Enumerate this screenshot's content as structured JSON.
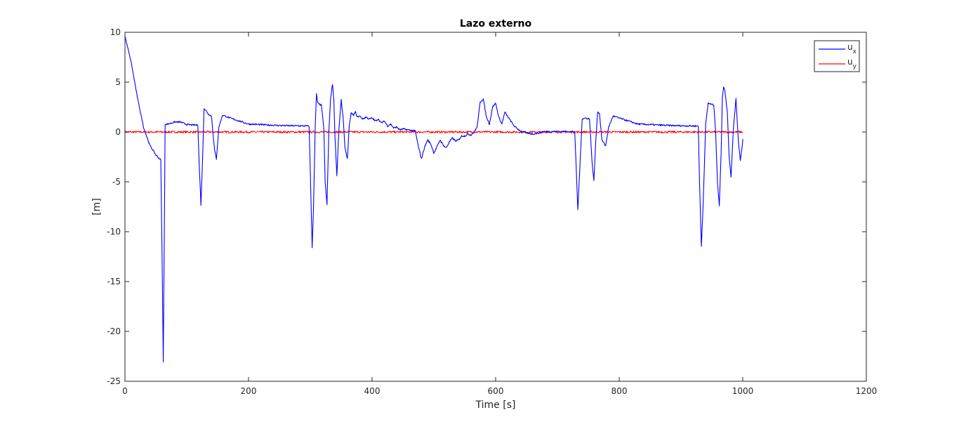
{
  "chart_data": {
    "type": "line",
    "title": "Lazo externo",
    "xlabel": "Time [s]",
    "ylabel": "[m]",
    "xlim": [
      0,
      1200
    ],
    "ylim": [
      -25,
      10
    ],
    "xticks": [
      0,
      200,
      400,
      600,
      800,
      1000,
      1200
    ],
    "yticks": [
      -25,
      -20,
      -15,
      -10,
      -5,
      0,
      5,
      10
    ],
    "xtick_labels": [
      "0",
      "200",
      "400",
      "600",
      "800",
      "1000",
      "1200"
    ],
    "ytick_labels": [
      "-25",
      "-20",
      "-15",
      "-10",
      "-5",
      "0",
      "5",
      "10"
    ],
    "grid": false,
    "legend_position": "top-right",
    "series": [
      {
        "name": "u_x",
        "legend_main": "u",
        "legend_sub": "x",
        "color": "#0000ff",
        "x": [
          0,
          10,
          20,
          30,
          40,
          50,
          58,
          60,
          62,
          64,
          65,
          70,
          80,
          90,
          100,
          110,
          118,
          120,
          123,
          126,
          128,
          135,
          140,
          145,
          148,
          152,
          158,
          170,
          200,
          250,
          298,
          300,
          303,
          305,
          308,
          310,
          312,
          314,
          318,
          322,
          324,
          327,
          330,
          333,
          336,
          338,
          340,
          343,
          346,
          350,
          353,
          356,
          360,
          363,
          366,
          370,
          373,
          376,
          380,
          385,
          390,
          395,
          400,
          405,
          410,
          415,
          420,
          425,
          430,
          435,
          440,
          445,
          450,
          460,
          470,
          475,
          480,
          485,
          490,
          495,
          500,
          505,
          510,
          515,
          520,
          525,
          530,
          535,
          540,
          545,
          550,
          555,
          560,
          565,
          570,
          575,
          580,
          585,
          590,
          595,
          600,
          605,
          610,
          615,
          620,
          630,
          640,
          650,
          660,
          670,
          680,
          700,
          728,
          730,
          733,
          736,
          740,
          745,
          752,
          756,
          759,
          762,
          765,
          768,
          772,
          778,
          783,
          790,
          800,
          830,
          880,
          928,
          930,
          933,
          936,
          940,
          944,
          948,
          953,
          956,
          959,
          962,
          965,
          967,
          969,
          971,
          975,
          978,
          981,
          985,
          989,
          993,
          996,
          999,
          1000
        ],
        "y": [
          9.6,
          7.0,
          3.5,
          0.5,
          -1.3,
          -2.3,
          -2.8,
          -12,
          -23,
          -8,
          0.8,
          0.8,
          1.0,
          1.0,
          0.75,
          0.7,
          0.7,
          -3,
          -7.3,
          -2,
          2.4,
          1.8,
          1.6,
          -1.8,
          -2.7,
          0.5,
          1.7,
          1.4,
          0.8,
          0.65,
          0.6,
          -4,
          -11.6,
          -8,
          0.6,
          3.8,
          2.9,
          2.8,
          2.7,
          0.2,
          -5,
          -7.3,
          0,
          3.5,
          4.8,
          3.3,
          -0.5,
          -4.4,
          0,
          3.2,
          1.5,
          -1.5,
          -2.7,
          0.5,
          1.9,
          1.7,
          2.0,
          1.5,
          1.6,
          1.3,
          1.5,
          1.3,
          1.4,
          1.1,
          1.3,
          0.9,
          1.1,
          0.6,
          0.8,
          0.4,
          0.5,
          0.2,
          0.3,
          0.2,
          0.1,
          -1.5,
          -2.7,
          -1.5,
          -0.8,
          -1.2,
          -2.1,
          -1.5,
          -0.8,
          -1.3,
          -1.6,
          -1.0,
          -0.6,
          -0.9,
          -0.8,
          -0.4,
          -0.4,
          -0.2,
          -0.3,
          0,
          0.5,
          3.0,
          3.3,
          1.5,
          0.8,
          2.5,
          2.9,
          1.5,
          0.8,
          2.0,
          1.5,
          0.6,
          0.1,
          -0.1,
          -0.2,
          -0.1,
          0.05,
          0.05,
          0.05,
          -3,
          -7.8,
          -4,
          1.3,
          1.4,
          1.3,
          -3,
          -4.9,
          -1,
          2.0,
          1.9,
          -0.8,
          -1.4,
          0.5,
          1.6,
          1.4,
          0.8,
          0.65,
          0.6,
          -5,
          -11.5,
          -7,
          0.8,
          2.9,
          2.8,
          2.7,
          0.2,
          -5,
          -7.4,
          -2,
          3.5,
          4.5,
          4.2,
          2.0,
          -2.5,
          -4.5,
          0.5,
          3.3,
          -1,
          -2.8,
          -1.5,
          -0.7
        ],
        "noise": 0.08
      },
      {
        "name": "u_y",
        "legend_main": "u",
        "legend_sub": "y",
        "color": "#ff0000",
        "x": [
          0,
          1000
        ],
        "y": [
          0,
          0
        ],
        "noise": 0.1
      }
    ]
  }
}
